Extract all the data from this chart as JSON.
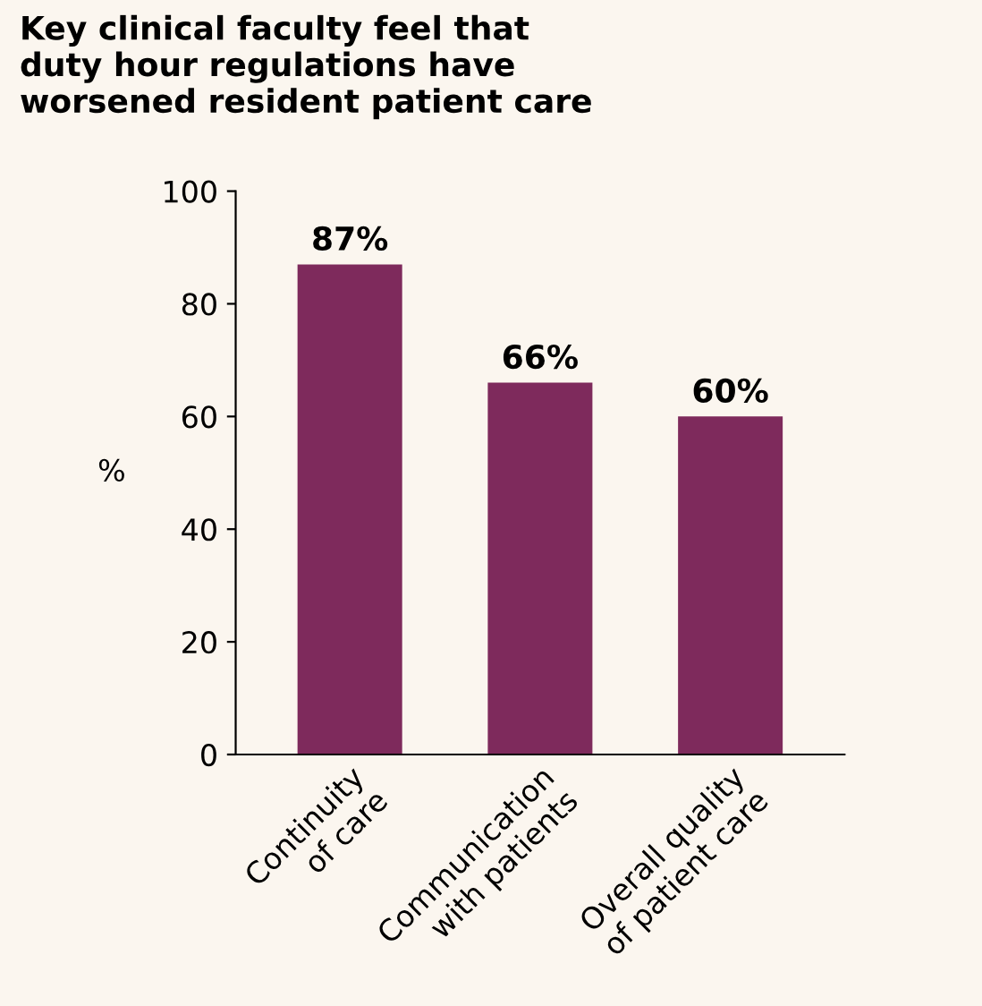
{
  "chart_data": {
    "type": "bar",
    "title": "Key clinical faculty feel that\nduty hour regulations have\nworsened resident patient care",
    "ylabel": "%",
    "categories": [
      "Continuity\nof care",
      "Communication\nwith patients",
      "Overall quality\nof patient care"
    ],
    "values": [
      87,
      66,
      60
    ],
    "color": "#7e2a5c",
    "ylim": [
      0,
      100
    ],
    "yticks": [
      0,
      20,
      40,
      60,
      80,
      100
    ],
    "value_labels": [
      "87%",
      "66%",
      "60%"
    ],
    "grid": false,
    "legend": false
  }
}
